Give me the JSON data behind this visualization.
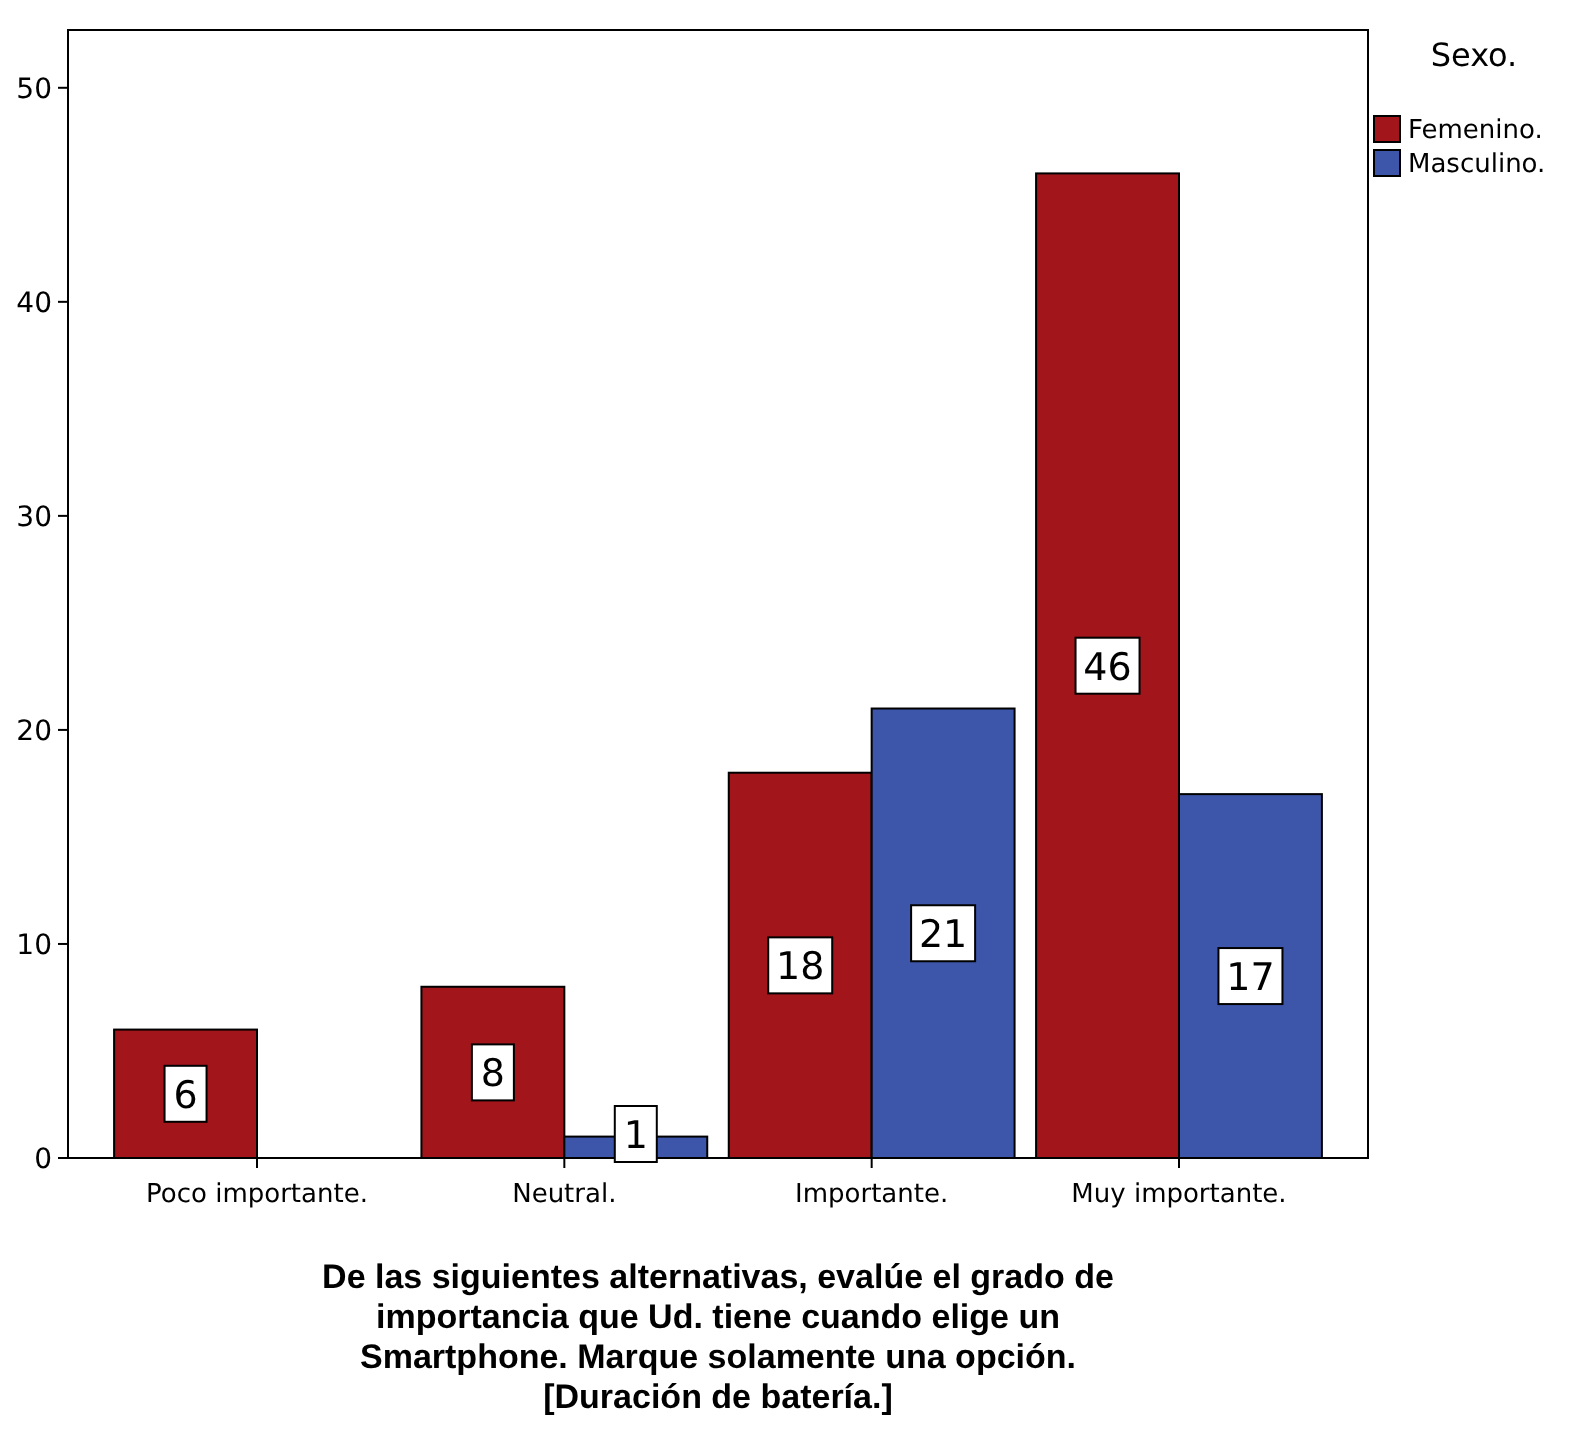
{
  "chart_data": {
    "type": "bar",
    "xlabel": "De las siguientes alternativas, evalúe el grado de importancia que Ud. tiene cuando elige un Smartphone. Marque solamente una opción. [Duración de batería.]",
    "legend_title": "Sexo.",
    "legend": "top right",
    "data_labels": true,
    "grid": false,
    "categories": [
      "Poco importante.",
      "Neutral.",
      "Importante.",
      "Muy importante."
    ],
    "series": [
      {
        "name": "Femenino.",
        "color": "#a2151b",
        "values": [
          6,
          8,
          18,
          46
        ]
      },
      {
        "name": "Masculino.",
        "color": "#3d56a9",
        "values": [
          null,
          1,
          21,
          17
        ]
      }
    ],
    "ylim": [
      0,
      52.7
    ],
    "yticks": [
      0,
      10,
      20,
      30,
      40,
      50
    ]
  }
}
